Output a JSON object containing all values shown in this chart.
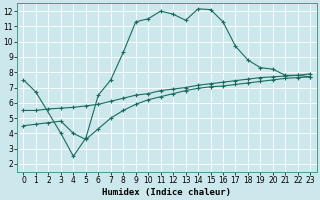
{
  "bg_color": "#cce8ed",
  "line_color": "#1a6b5e",
  "grid_color": "#b0d8de",
  "xlabel": "Humidex (Indice chaleur)",
  "ylim": [
    1.5,
    12.5
  ],
  "xlim": [
    -0.5,
    23.5
  ],
  "yticks": [
    2,
    3,
    4,
    5,
    6,
    7,
    8,
    9,
    10,
    11,
    12
  ],
  "xticks": [
    0,
    1,
    2,
    3,
    4,
    5,
    6,
    7,
    8,
    9,
    10,
    11,
    12,
    13,
    14,
    15,
    16,
    17,
    18,
    19,
    20,
    21,
    22,
    23
  ],
  "line1_x": [
    0,
    1,
    3,
    4,
    5,
    6,
    7,
    8,
    9,
    10,
    11,
    12,
    13,
    14,
    15,
    16,
    17,
    18,
    19,
    20,
    21,
    22,
    23
  ],
  "line1_y": [
    7.5,
    6.7,
    4.0,
    2.5,
    3.7,
    6.5,
    7.5,
    9.3,
    11.3,
    11.5,
    12.0,
    11.8,
    11.4,
    12.15,
    12.1,
    11.3,
    9.7,
    8.8,
    8.3,
    8.2,
    7.8,
    7.8,
    7.7
  ],
  "line2_x": [
    0,
    1,
    2,
    3,
    4,
    5,
    6,
    7,
    8,
    9,
    10,
    11,
    12,
    13,
    14,
    15,
    16,
    17,
    18,
    19,
    20,
    21,
    22,
    23
  ],
  "line2_y": [
    5.5,
    5.5,
    5.6,
    5.65,
    5.7,
    5.8,
    5.9,
    6.1,
    6.3,
    6.5,
    6.6,
    6.8,
    6.9,
    7.0,
    7.15,
    7.25,
    7.35,
    7.45,
    7.55,
    7.65,
    7.7,
    7.75,
    7.8,
    7.9
  ],
  "line3_x": [
    0,
    1,
    2,
    3,
    4,
    5,
    6,
    7,
    8,
    9,
    10,
    11,
    12,
    13,
    14,
    15,
    16,
    17,
    18,
    19,
    20,
    21,
    22,
    23
  ],
  "line3_y": [
    4.5,
    4.6,
    4.7,
    4.8,
    4.0,
    3.6,
    4.3,
    5.0,
    5.5,
    5.9,
    6.2,
    6.4,
    6.6,
    6.8,
    6.95,
    7.05,
    7.1,
    7.2,
    7.3,
    7.4,
    7.5,
    7.6,
    7.65,
    7.7
  ],
  "tick_fontsize": 5.5,
  "xlabel_fontsize": 6.5
}
